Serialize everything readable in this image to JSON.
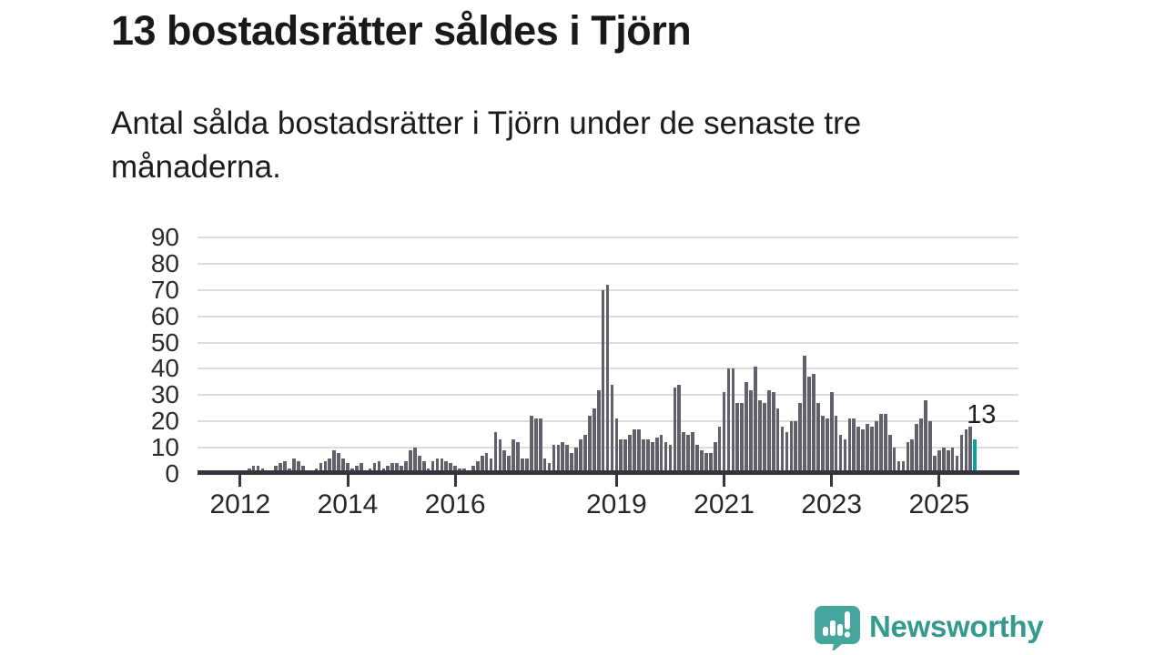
{
  "page": {
    "title": "13 bostadsrätter såldes i Tjörn",
    "subtitle": "Antal sålda bostadsrätter i Tjörn under de senaste tre månaderna."
  },
  "chart_data": {
    "type": "bar",
    "title": "13 bostadsrätter såldes i Tjörn",
    "subtitle": "Antal sålda bostadsrätter i Tjörn under de senaste tre månaderna.",
    "x_start": "2012-01",
    "x_end": "2025-09",
    "frequency": "monthly",
    "ylabel": "",
    "xlabel": "",
    "ylim": [
      0,
      90
    ],
    "yticks": [
      0,
      10,
      20,
      30,
      40,
      50,
      60,
      70,
      80,
      90
    ],
    "grid": true,
    "legend": "none",
    "values": [
      0,
      0,
      2,
      3,
      3,
      2,
      1,
      0,
      3,
      4,
      5,
      2,
      6,
      5,
      3,
      1,
      0,
      2,
      4,
      5,
      6,
      9,
      8,
      6,
      4,
      2,
      3,
      4,
      1,
      2,
      4,
      5,
      2,
      3,
      4,
      4,
      3,
      5,
      9,
      10,
      7,
      5,
      2,
      5,
      6,
      6,
      5,
      4,
      3,
      2,
      2,
      1,
      3,
      5,
      7,
      8,
      6,
      16,
      13,
      9,
      7,
      13,
      12,
      6,
      6,
      22,
      21,
      21,
      6,
      4,
      11,
      11,
      12,
      11,
      8,
      10,
      13,
      15,
      22,
      25,
      32,
      70,
      72,
      34,
      21,
      13,
      13,
      15,
      17,
      17,
      13,
      13,
      12,
      14,
      15,
      12,
      11,
      33,
      34,
      16,
      15,
      16,
      11,
      9,
      8,
      8,
      12,
      18,
      31,
      40,
      40,
      27,
      27,
      35,
      32,
      41,
      28,
      27,
      32,
      31,
      25,
      18,
      16,
      20,
      20,
      27,
      45,
      37,
      38,
      27,
      22,
      21,
      31,
      22,
      15,
      13,
      21,
      21,
      18,
      17,
      19,
      18,
      20,
      23,
      23,
      15,
      10,
      5,
      5,
      12,
      13,
      19,
      21,
      28,
      20,
      7,
      9,
      10,
      9,
      10,
      7,
      15,
      17,
      18,
      13
    ],
    "xticks": [
      {
        "label": "2012",
        "month_index": 0
      },
      {
        "label": "2014",
        "month_index": 24
      },
      {
        "label": "2016",
        "month_index": 48
      },
      {
        "label": "2019",
        "month_index": 84
      },
      {
        "label": "2021",
        "month_index": 108
      },
      {
        "label": "2023",
        "month_index": 132
      },
      {
        "label": "2025",
        "month_index": 156
      }
    ],
    "highlight": {
      "index": 164,
      "value": 13,
      "label": "13"
    }
  },
  "annotation": {
    "value_label": "13"
  },
  "branding": {
    "name": "Newsworthy",
    "logo_icon": "bar-chart-exclamation-speech-bubble"
  },
  "colors": {
    "bar": "#61616b",
    "highlight": "#0d9fa0",
    "axis": "#35353d",
    "grid": "#dcdcdc",
    "brand": "#34998e",
    "text": "#1c1c1c"
  }
}
